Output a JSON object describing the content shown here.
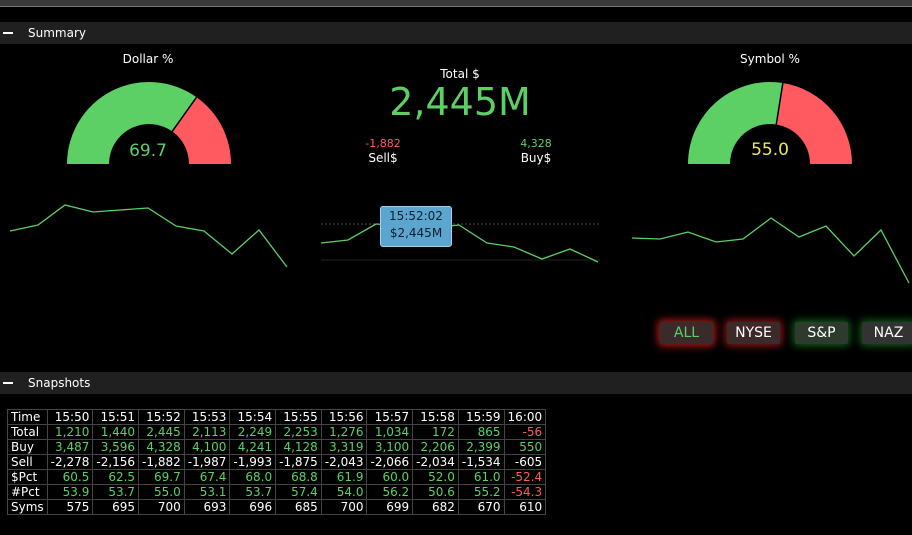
{
  "summary": {
    "header": "Summary",
    "dollar_pct": {
      "label": "Dollar %",
      "value": "69.7",
      "fraction": 0.697
    },
    "symbol_pct": {
      "label": "Symbol %",
      "value": "55.0",
      "fraction": 0.55
    },
    "total": {
      "label": "Total $",
      "value": "2,445M"
    },
    "sell": {
      "value": "-1,882",
      "label": "Sell$"
    },
    "buy": {
      "value": "4,328",
      "label": "Buy$"
    },
    "tooltip": {
      "time": "15:52:02",
      "value": "$2,445M"
    },
    "colors": {
      "green": "#5cd065",
      "red": "#ff5a5f",
      "yellow": "#e8e85a",
      "tooltip": "#5ba6cf"
    }
  },
  "filters": [
    {
      "label": "ALL",
      "active": true
    },
    {
      "label": "NYSE",
      "active": false
    },
    {
      "label": "S&P",
      "active": false
    },
    {
      "label": "NAZ",
      "active": false
    }
  ],
  "snapshots": {
    "header": "Snapshots",
    "times": [
      "15:50",
      "15:51",
      "15:52",
      "15:53",
      "15:54",
      "15:55",
      "15:56",
      "15:57",
      "15:58",
      "15:59",
      "16:00"
    ],
    "rows": [
      {
        "label": "Total",
        "values": [
          "1,210",
          "1,440",
          "2,445",
          "2,113",
          "2,249",
          "2,253",
          "1,276",
          "1,034",
          "172",
          "865",
          "-56"
        ]
      },
      {
        "label": "Buy",
        "values": [
          "3,487",
          "3,596",
          "4,328",
          "4,100",
          "4,241",
          "4,128",
          "3,319",
          "3,100",
          "2,206",
          "2,399",
          "550"
        ]
      },
      {
        "label": "Sell",
        "values": [
          "-2,278",
          "-2,156",
          "-1,882",
          "-1,987",
          "-1,993",
          "-1,875",
          "-2,043",
          "-2,066",
          "-2,034",
          "-1,534",
          "-605"
        ]
      },
      {
        "label": "$Pct",
        "values": [
          "60.5",
          "62.5",
          "69.7",
          "67.4",
          "68.0",
          "68.8",
          "61.9",
          "60.0",
          "52.0",
          "61.0",
          "-52.4"
        ]
      },
      {
        "label": "#Pct",
        "values": [
          "53.9",
          "53.7",
          "55.0",
          "53.1",
          "53.7",
          "57.4",
          "54.0",
          "56.2",
          "50.6",
          "55.2",
          "-54.3"
        ]
      },
      {
        "label": "Syms",
        "values": [
          "575",
          "695",
          "700",
          "693",
          "696",
          "685",
          "700",
          "699",
          "682",
          "670",
          "610"
        ]
      }
    ],
    "time_label": "Time"
  }
}
